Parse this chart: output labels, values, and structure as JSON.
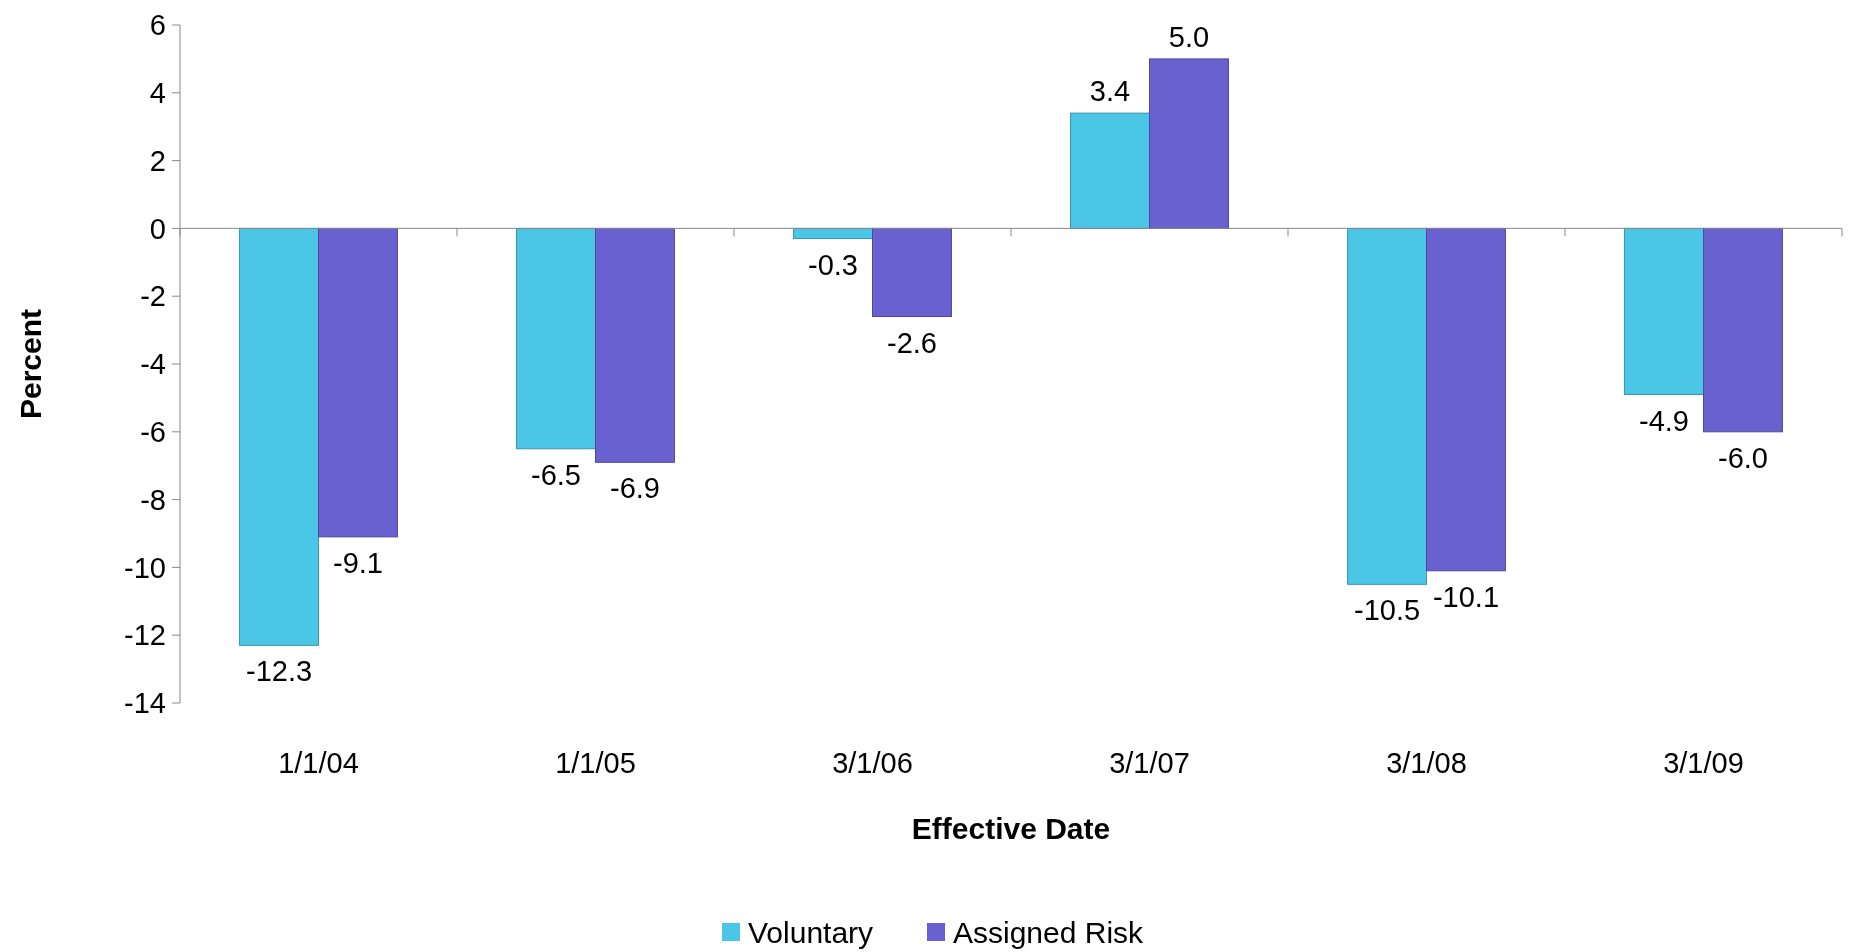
{
  "chart_data": {
    "type": "bar",
    "xlabel": "Effective Date",
    "ylabel": "Percent",
    "categories": [
      "1/1/04",
      "1/1/05",
      "3/1/06",
      "3/1/07",
      "3/1/08",
      "3/1/09"
    ],
    "series": [
      {
        "name": "Voluntary",
        "color": "#4cc6e6",
        "values": [
          -12.3,
          -6.5,
          -0.3,
          3.4,
          -10.5,
          -4.9
        ],
        "value_labels": [
          "-12.3",
          "-6.5",
          "-0.3",
          "3.4",
          "-10.5",
          "-4.9"
        ]
      },
      {
        "name": "Assigned Risk",
        "color": "#6861cf",
        "values": [
          -9.1,
          -6.9,
          -2.6,
          5,
          -10.1,
          -6
        ],
        "value_labels": [
          "-9.1",
          "-6.9",
          "-2.6",
          "5.0",
          "-10.1",
          "-6.0"
        ]
      }
    ],
    "ylim": [
      -14,
      6
    ],
    "yticks": [
      -14,
      -12,
      -10,
      -8,
      -6,
      -4,
      -2,
      0,
      2,
      4,
      6
    ],
    "legend": "bottom"
  }
}
